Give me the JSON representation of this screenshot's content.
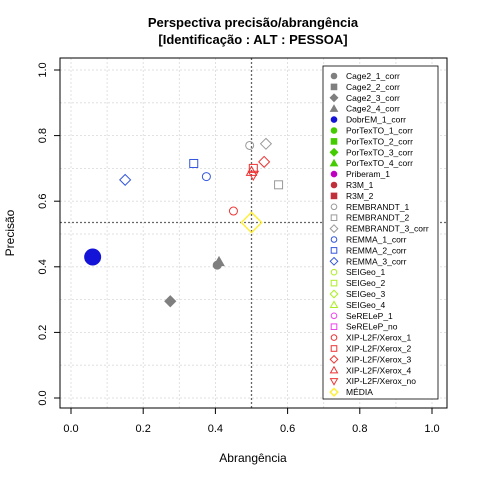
{
  "chart_data": {
    "type": "scatter",
    "title": [
      "Perspectiva precisão/abrangência",
      "[Identificação : ALT : PESSOA]"
    ],
    "xlabel": "Abrangência",
    "ylabel": "Precisão",
    "xlim": [
      0,
      1
    ],
    "ylim": [
      0,
      1
    ],
    "x_ticks": [
      "0.0",
      "0.2",
      "0.4",
      "0.6",
      "0.8",
      "1.0"
    ],
    "y_ticks": [
      "0.0",
      "0.2",
      "0.4",
      "0.6",
      "0.8",
      "1.0"
    ],
    "grid": true,
    "legend_position": "right",
    "reference_lines": {
      "x": 0.5,
      "y": 0.535
    },
    "series": [
      {
        "name": "Cage2_1_corr",
        "shape": "circle",
        "color": "#7f7f7f",
        "filled": true,
        "points": [
          [
            0.405,
            0.405
          ]
        ]
      },
      {
        "name": "Cage2_2_corr",
        "shape": "square",
        "color": "#7f7f7f",
        "filled": true,
        "points": []
      },
      {
        "name": "Cage2_3_corr",
        "shape": "diamond",
        "color": "#7f7f7f",
        "filled": true,
        "points": [
          [
            0.275,
            0.295
          ]
        ]
      },
      {
        "name": "Cage2_4_corr",
        "shape": "triangle",
        "color": "#7f7f7f",
        "filled": true,
        "points": [
          [
            0.41,
            0.415
          ]
        ]
      },
      {
        "name": "DobrEM_1_corr",
        "shape": "circle",
        "color": "#1414d8",
        "filled": true,
        "points": [
          [
            0.06,
            0.43
          ]
        ]
      },
      {
        "name": "PorTexTO_1_corr",
        "shape": "circle",
        "color": "#44cc00",
        "filled": true,
        "points": []
      },
      {
        "name": "PorTexTO_2_corr",
        "shape": "square",
        "color": "#44cc00",
        "filled": true,
        "points": []
      },
      {
        "name": "PorTexTO_3_corr",
        "shape": "diamond",
        "color": "#44cc00",
        "filled": true,
        "points": []
      },
      {
        "name": "PorTexTO_4_corr",
        "shape": "triangle",
        "color": "#44cc00",
        "filled": true,
        "points": []
      },
      {
        "name": "Priberam_1",
        "shape": "circle",
        "color": "#c000c0",
        "filled": true,
        "points": []
      },
      {
        "name": "R3M_1",
        "shape": "circle",
        "color": "#c0303a",
        "filled": true,
        "points": []
      },
      {
        "name": "R3M_2",
        "shape": "square",
        "color": "#c0303a",
        "filled": true,
        "points": []
      },
      {
        "name": "REMBRANDT_1",
        "shape": "circle",
        "color": "#999999",
        "filled": false,
        "points": [
          [
            0.495,
            0.77
          ]
        ]
      },
      {
        "name": "REMBRANDT_2",
        "shape": "square",
        "color": "#999999",
        "filled": false,
        "points": [
          [
            0.575,
            0.65
          ]
        ]
      },
      {
        "name": "REMBRANDT_3_corr",
        "shape": "diamond",
        "color": "#999999",
        "filled": false,
        "points": [
          [
            0.54,
            0.775
          ]
        ]
      },
      {
        "name": "REMMA_1_corr",
        "shape": "circle",
        "color": "#3355dd",
        "filled": false,
        "points": [
          [
            0.375,
            0.675
          ]
        ]
      },
      {
        "name": "REMMA_2_corr",
        "shape": "square",
        "color": "#3355dd",
        "filled": false,
        "points": [
          [
            0.34,
            0.715
          ]
        ]
      },
      {
        "name": "REMMA_3_corr",
        "shape": "diamond",
        "color": "#3355dd",
        "filled": false,
        "points": [
          [
            0.15,
            0.665
          ]
        ]
      },
      {
        "name": "SEIGeo_1",
        "shape": "circle",
        "color": "#aaee22",
        "filled": false,
        "points": []
      },
      {
        "name": "SEIGeo_2",
        "shape": "square",
        "color": "#aaee22",
        "filled": false,
        "points": []
      },
      {
        "name": "SEIGeo_3",
        "shape": "diamond",
        "color": "#aaee22",
        "filled": false,
        "points": []
      },
      {
        "name": "SEIGeo_4",
        "shape": "triangle",
        "color": "#aaee22",
        "filled": false,
        "points": []
      },
      {
        "name": "SeRELeP_1",
        "shape": "circle",
        "color": "#ee44ee",
        "filled": false,
        "points": []
      },
      {
        "name": "SeRELeP_no",
        "shape": "square",
        "color": "#ee44ee",
        "filled": false,
        "points": []
      },
      {
        "name": "XIP-L2F/Xerox_1",
        "shape": "circle",
        "color": "#ee3333",
        "filled": false,
        "points": [
          [
            0.45,
            0.57
          ]
        ]
      },
      {
        "name": "XIP-L2F/Xerox_2",
        "shape": "square",
        "color": "#ee3333",
        "filled": false,
        "points": [
          [
            0.505,
            0.7
          ]
        ]
      },
      {
        "name": "XIP-L2F/Xerox_3",
        "shape": "diamond",
        "color": "#ee3333",
        "filled": false,
        "points": [
          [
            0.535,
            0.72
          ]
        ]
      },
      {
        "name": "XIP-L2F/Xerox_4",
        "shape": "triangle",
        "color": "#ee3333",
        "filled": false,
        "points": [
          [
            0.5,
            0.69
          ]
        ]
      },
      {
        "name": "XIP-L2F/Xerox_no",
        "shape": "triangle-down",
        "color": "#ee3333",
        "filled": false,
        "points": [
          [
            0.505,
            0.68
          ]
        ]
      },
      {
        "name": "MÉDIA",
        "shape": "diamond",
        "color": "#ffee33",
        "filled": false,
        "points": [
          [
            0.5,
            0.535
          ]
        ],
        "big": true
      }
    ]
  }
}
